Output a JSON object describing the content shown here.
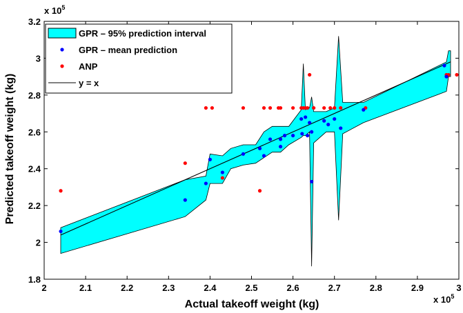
{
  "chart_data": {
    "type": "line",
    "title": "",
    "xlabel": "Actual takeoff weight (kg)",
    "ylabel": "Predicted takeoff weight (kg)",
    "x_multiplier": "x 10",
    "y_multiplier": "x 10",
    "multiplier_exponent": "5",
    "xlim": [
      2.0,
      3.0
    ],
    "ylim": [
      1.8,
      3.2
    ],
    "xticks": [
      "2",
      "2.1",
      "2.2",
      "2.3",
      "2.4",
      "2.5",
      "2.6",
      "2.7",
      "2.8",
      "2.9",
      "3"
    ],
    "yticks": [
      "1.8",
      "2",
      "2.2",
      "2.4",
      "2.6",
      "2.8",
      "3",
      "3.2"
    ],
    "grid": false,
    "legend_position": "top-left",
    "legend": [
      {
        "label": "GPR – 95% prediction interval",
        "kind": "band",
        "color": "#00ffff"
      },
      {
        "label": "GPR – mean prediction",
        "kind": "marker",
        "color": "#0000ff"
      },
      {
        "label": "ANP",
        "kind": "marker",
        "color": "#ff0000"
      },
      {
        "label": "y = x",
        "kind": "line",
        "color": "#000000"
      }
    ],
    "series": [
      {
        "name": "GPR – 95% prediction interval",
        "kind": "band",
        "color": "#00ffff",
        "x": [
          2.04,
          2.34,
          2.39,
          2.4,
          2.43,
          2.45,
          2.48,
          2.51,
          2.53,
          2.55,
          2.57,
          2.59,
          2.62,
          2.625,
          2.63,
          2.64,
          2.645,
          2.65,
          2.68,
          2.7,
          2.71,
          2.72,
          2.77,
          2.97,
          2.975,
          2.98
        ],
        "upper": [
          2.08,
          2.34,
          2.36,
          2.48,
          2.47,
          2.51,
          2.53,
          2.53,
          2.6,
          2.63,
          2.63,
          2.63,
          2.72,
          2.97,
          2.72,
          2.73,
          2.79,
          2.71,
          2.71,
          2.73,
          3.12,
          2.76,
          2.76,
          2.98,
          3.04,
          3.04
        ],
        "lower": [
          1.94,
          2.14,
          2.23,
          2.32,
          2.32,
          2.4,
          2.42,
          2.43,
          2.46,
          2.49,
          2.49,
          2.53,
          2.57,
          2.58,
          2.58,
          2.6,
          1.87,
          2.54,
          2.6,
          2.6,
          2.12,
          2.59,
          2.65,
          2.82,
          2.9,
          2.9
        ]
      },
      {
        "name": "GPR – mean prediction",
        "kind": "scatter",
        "color": "#0000ff",
        "x": [
          2.04,
          2.34,
          2.39,
          2.4,
          2.43,
          2.48,
          2.52,
          2.53,
          2.545,
          2.57,
          2.57,
          2.58,
          2.6,
          2.62,
          2.622,
          2.63,
          2.635,
          2.64,
          2.645,
          2.645,
          2.675,
          2.685,
          2.7,
          2.715,
          2.77,
          2.965,
          2.97
        ],
        "y": [
          2.06,
          2.23,
          2.32,
          2.45,
          2.38,
          2.48,
          2.51,
          2.47,
          2.56,
          2.52,
          2.56,
          2.58,
          2.58,
          2.67,
          2.59,
          2.68,
          2.58,
          2.65,
          2.33,
          2.6,
          2.66,
          2.64,
          2.67,
          2.62,
          2.72,
          2.96,
          2.9
        ]
      },
      {
        "name": "ANP",
        "kind": "scatter",
        "color": "#ff0000",
        "x": [
          2.04,
          2.34,
          2.39,
          2.405,
          2.43,
          2.48,
          2.52,
          2.53,
          2.545,
          2.565,
          2.57,
          2.6,
          2.62,
          2.625,
          2.63,
          2.635,
          2.64,
          2.65,
          2.675,
          2.69,
          2.7,
          2.715,
          2.775,
          2.97,
          2.975,
          2.995
        ],
        "y": [
          2.28,
          2.43,
          2.73,
          2.73,
          2.35,
          2.73,
          2.28,
          2.73,
          2.73,
          2.73,
          2.73,
          2.73,
          2.73,
          2.73,
          2.73,
          2.73,
          2.91,
          2.73,
          2.73,
          2.73,
          2.73,
          2.73,
          2.73,
          2.91,
          2.91,
          2.91
        ]
      },
      {
        "name": "y = x",
        "kind": "line",
        "color": "#000000",
        "x": [
          2.04,
          2.98
        ],
        "y": [
          2.04,
          2.98
        ]
      }
    ]
  }
}
